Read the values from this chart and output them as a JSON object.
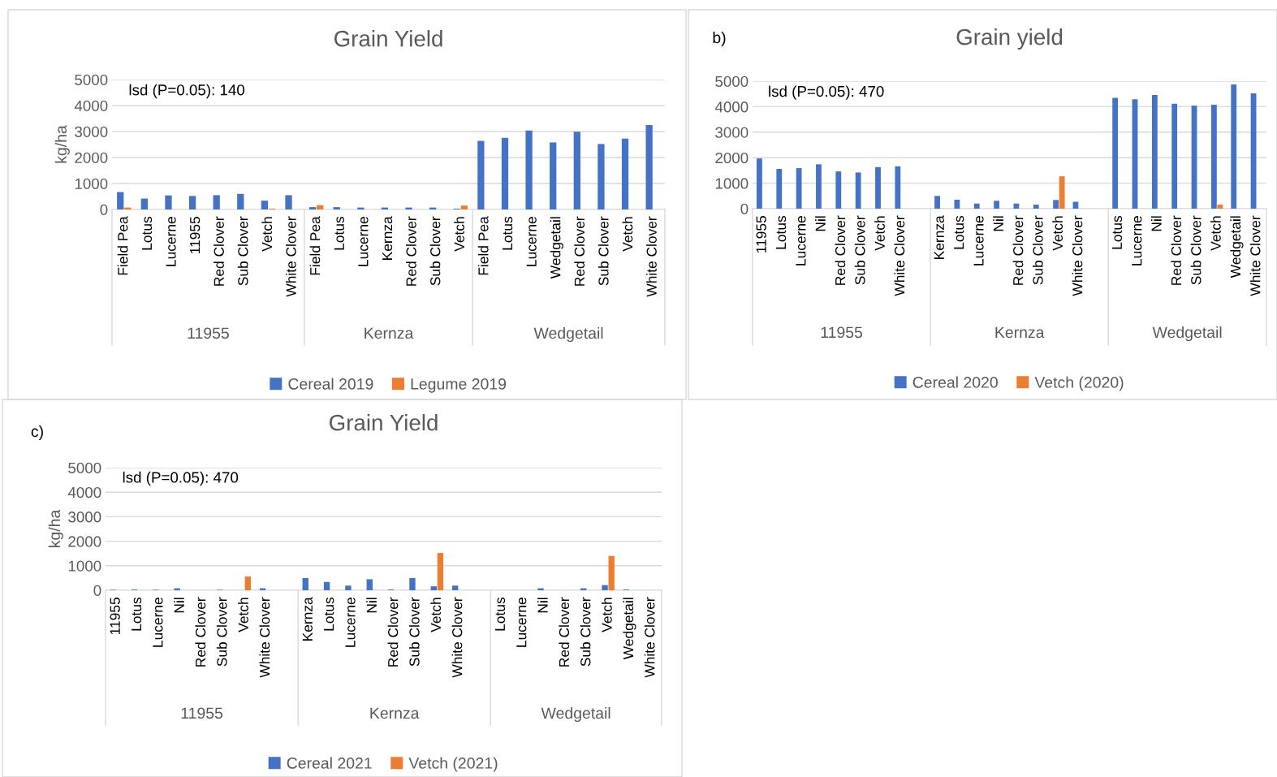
{
  "chart_data": [
    {
      "type": "bar",
      "title": "Grain Yield",
      "ylabel": "kg/ha",
      "ylim": [
        0,
        5000
      ],
      "yticks": [
        0,
        1000,
        2000,
        3000,
        4000,
        5000
      ],
      "grid": "y",
      "legend": "bottom",
      "categories": [
        "Field Pea",
        "Lotus",
        "Lucerne",
        "11955",
        "Red Clover",
        "Sub Clover",
        "Vetch",
        "White Clover",
        "Field Pea",
        "Lotus",
        "Lucerne",
        "Kernza",
        "Red Clover",
        "Sub Clover",
        "Vetch",
        "Field Pea",
        "Lotus",
        "Lucerne",
        "Wedgetail",
        "Red Clover",
        "Sub Clover",
        "Vetch",
        "White Clover"
      ],
      "series": [
        {
          "name": "Cereal 2019",
          "color": "#4472c4",
          "values": [
            670,
            420,
            540,
            520,
            550,
            600,
            340,
            550,
            90,
            90,
            75,
            75,
            75,
            75,
            30,
            2640,
            2760,
            3040,
            2580,
            2990,
            2520,
            2730,
            3250
          ]
        },
        {
          "name": "Legume 2019",
          "color": "#ed7d31",
          "values": [
            75,
            null,
            null,
            null,
            null,
            null,
            30,
            null,
            165,
            null,
            null,
            null,
            null,
            null,
            150,
            null,
            null,
            null,
            null,
            null,
            null,
            null,
            null
          ]
        }
      ],
      "annotations": [
        "lsd (P=0.05): 140",
        "11955",
        "Kernza",
        "Wedgetail"
      ]
    },
    {
      "type": "bar",
      "title": "Grain yield",
      "ylim": [
        0,
        5000
      ],
      "yticks": [
        0,
        1000,
        2000,
        3000,
        4000,
        5000
      ],
      "grid": "y",
      "legend": "bottom",
      "categories": [
        "11955",
        "Lotus",
        "Lucerne",
        "Nil",
        "Red Clover",
        "Sub Clover",
        "Vetch",
        "White Clover",
        null,
        "Kernza",
        "Lotus",
        "Lucerne",
        "Nil",
        "Red Clover",
        "Sub Clover",
        "Vetch",
        "White Clover",
        null,
        "Lotus",
        "Lucerne",
        "Nil",
        "Red Clover",
        "Sub Clover",
        "Vetch",
        "Wedgetail",
        "White Clover"
      ],
      "series": [
        {
          "name": "Cereal 2020",
          "color": "#4472c4",
          "values": [
            1970,
            1560,
            1590,
            1740,
            1460,
            1420,
            1630,
            1660,
            null,
            500,
            350,
            200,
            310,
            200,
            160,
            340,
            270,
            null,
            4350,
            4290,
            4460,
            4120,
            4040,
            4080,
            4870,
            4520
          ]
        },
        {
          "name": "Vetch (2020)",
          "color": "#ed7d31",
          "values": [
            null,
            null,
            null,
            null,
            null,
            null,
            null,
            null,
            null,
            null,
            null,
            null,
            null,
            null,
            null,
            1270,
            null,
            null,
            null,
            null,
            null,
            null,
            null,
            160,
            null,
            null
          ]
        }
      ],
      "annotations": [
        "b)",
        "lsd (P=0.05): 470",
        "11955",
        "Kernza",
        "Wedgetail"
      ]
    },
    {
      "type": "bar",
      "title": "Grain Yield",
      "ylabel": "kg/ha",
      "ylim": [
        0,
        5000
      ],
      "yticks": [
        0,
        1000,
        2000,
        3000,
        4000,
        5000
      ],
      "grid": "y",
      "legend": "bottom",
      "categories": [
        "11955",
        "Lotus",
        "Lucerne",
        "Nil",
        "Red Clover",
        "Sub Clover",
        "Vetch",
        "White Clover",
        null,
        "Kernza",
        "Lotus",
        "Lucerne",
        "Nil",
        "Red Clover",
        "Sub Clover",
        "Vetch",
        "White Clover",
        null,
        "Lotus",
        "Lucerne",
        "Nil",
        "Red Clover",
        "Sub Clover",
        "Vetch",
        "Wedgetail",
        "White Clover"
      ],
      "series": [
        {
          "name": "Cereal 2021",
          "color": "#4472c4",
          "values": [
            20,
            30,
            20,
            80,
            null,
            20,
            null,
            80,
            null,
            500,
            340,
            190,
            450,
            30,
            500,
            160,
            190,
            null,
            null,
            null,
            80,
            null,
            80,
            210,
            30,
            null
          ]
        },
        {
          "name": "Vetch (2021)",
          "color": "#ed7d31",
          "values": [
            null,
            null,
            null,
            null,
            null,
            null,
            560,
            null,
            null,
            null,
            null,
            null,
            null,
            null,
            null,
            1520,
            null,
            null,
            null,
            null,
            null,
            null,
            null,
            1400,
            null,
            null
          ]
        }
      ],
      "annotations": [
        "c)",
        "lsd (P=0.05): 470",
        "11955",
        "Kernza",
        "Wedgetail"
      ]
    }
  ]
}
